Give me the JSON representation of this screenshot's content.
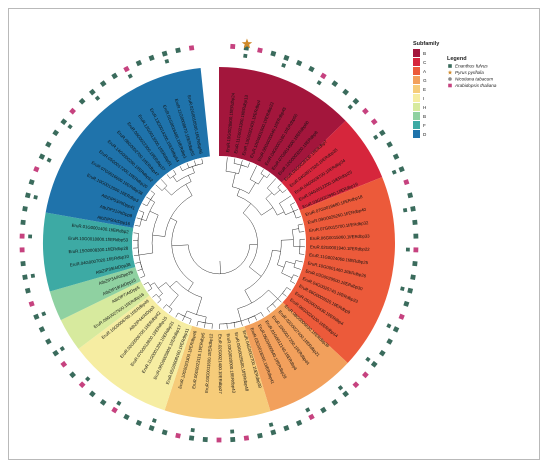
{
  "subfamily_legend": {
    "title": "Subfamily",
    "items": [
      {
        "label": "B",
        "color": "#a3163c"
      },
      {
        "label": "C",
        "color": "#d6263c"
      },
      {
        "label": "A",
        "color": "#ec5a3a"
      },
      {
        "label": "G",
        "color": "#f2a05c"
      },
      {
        "label": "E",
        "color": "#f6cc7a"
      },
      {
        "label": "I",
        "color": "#f6eda2"
      },
      {
        "label": "H",
        "color": "#d7ea9e"
      },
      {
        "label": "B",
        "color": "#8fd1a1"
      },
      {
        "label": "F",
        "color": "#3daaa4"
      },
      {
        "label": "D",
        "color": "#1f73ab"
      }
    ]
  },
  "species_legend": {
    "title": "Legend",
    "items": [
      {
        "label": "Enanthus fulvus",
        "color": "#3a6b5c",
        "shape": "square"
      },
      {
        "label": "Pyrus pyrifolia",
        "color": "#d08a2a",
        "shape": "star"
      },
      {
        "label": "Nicotiana tabacum",
        "color": "#8a8a8a",
        "shape": "circle"
      },
      {
        "label": "Arabidopsis thaliana",
        "color": "#c6427f",
        "shape": "square"
      }
    ]
  },
  "sectors": [
    {
      "subfamily": "B",
      "color": "#a3163c",
      "start": 0,
      "end": 46
    },
    {
      "subfamily": "C",
      "color": "#d6263c",
      "start": 46,
      "end": 68
    },
    {
      "subfamily": "A",
      "color": "#ec5a3a",
      "start": 68,
      "end": 133
    },
    {
      "subfamily": "G",
      "color": "#f2a05c",
      "start": 133,
      "end": 163
    },
    {
      "subfamily": "E",
      "color": "#f6cc7a",
      "start": 163,
      "end": 198
    },
    {
      "subfamily": "I",
      "color": "#f6eda2",
      "start": 198,
      "end": 233
    },
    {
      "subfamily": "H",
      "color": "#d7ea9e",
      "start": 233,
      "end": 244
    },
    {
      "subfamily": "B",
      "color": "#8fd1a1",
      "start": 244,
      "end": 254
    },
    {
      "subfamily": "F",
      "color": "#3daaa4",
      "start": 254,
      "end": 280
    },
    {
      "subfamily": "D",
      "color": "#1f73ab",
      "start": 280,
      "end": 354
    }
  ],
  "markers": {
    "enanthus_color": "#3a6b5c",
    "arabidopsis_color": "#c6427f",
    "star_color": "#d08a2a",
    "gap_start": 354,
    "gap_end": 360,
    "count": 88
  },
  "leaf_labels": [
    "EruR.10G0028800.1f/ERdbp24",
    "EruR.11G0021300.1f/ERdbp13",
    "EruR.13G0022400.1f/ERdbp4",
    "EruR.10G0001000.1f/ERdbp22",
    "EruR.08G0020040.1f/ERdbp45",
    "EruR.04G0001160.1f/ERdbp50",
    "EruR.07G0014500.1f/ERdbp60",
    "EruR.12G0003200.1f/ERdbp8",
    "EruR.04G0028330.1f/ERdbp7",
    "EruR.04G0017920.1f/ERdbp35",
    "EruR.04G0026700.1f/ERdbp34",
    "EruR.04G0012200.1f/ERdbp25",
    "EruR.03G0022990.1f/ERdbp19",
    "EruR.07G0019680.1f/ERdbp18",
    "EruR.09G0026250.1f/ERdbp40",
    "EruR.07G0015700.1f/ERdbp32",
    "EruR.06G0015060.1f/ERdbp33",
    "EruR.02G0001940.1f/ERdbp22",
    "EruR.11G0024060.1f/ERdbp25",
    "EruR.10G0001460.1f/ERdbp26",
    "EruR.03G0029500.1f/ERdbp30",
    "EruR.04G0025740.1f/ERdbp23",
    "EruR.06G0003520.1f/ERdbp9",
    "EruR.05G0010430.1f/ERdbp4",
    "EruR.06G0024100.1f/ERdbp14",
    "EruR.08G0006630.1f/ERdbp36",
    "EruR.02G0027400.1f/ERdbp21",
    "EruR.10G0017250.1f/ERdbp44",
    "EruR.01G0012140.1f/ERdbp6",
    "EruR.05G0000540.1f/ERdbp29",
    "EruR.03G0018200.1f/ERdbp41",
    "EruR.04G0002700.1f/ERdbp39",
    "EruR.09G0025500.1f/ERdbp48",
    "EruR.03G0020000.1f/ERdbp43",
    "EruR.02G0021400.1f/ERdbp27",
    "EruR.03G0011500.1f/ERdbp12",
    "EruR.06G0023110.1f/ERdbp5",
    "EruR.10G0023300.1f/ERdbp46",
    "EruR.05G0008100.1f/ERdbp11",
    "EruR.06G0005800.1f/ERdbp17",
    "EruR.11G0001200.1f/ERdbp31",
    "EruR.07G0012800.1f/ERdbp15",
    "EruR.02G0006700.1f/ERdbp42",
    "AtbZIP44/AtDpp3",
    "EruR.10G0006700.1f/ERdbp49",
    "EruR.09G0027500.1f/ERdbp16",
    "AtbZIP7/AtDpp5",
    "AtbZIP19/AtDpp15",
    "AtbZIP34/AtDpp29",
    "AtbZIP39/AtDpp38",
    "EruR.04G0007020.1f/ERdbp10",
    "EruR.15G0008300.1f/ERdbp28",
    "EruR.10G0018800.1f/ERdbp53",
    "EruR.01G0001400.1f/ERdbp2",
    "AtbZIP9/AtDpp16",
    "AtbZIP21/AtDpp8",
    "AtbZIP53/AtDpp41",
    "EruR.10G0012500.1f/ERdbp3",
    "EruR.07G0016600.1f/ERdbp38",
    "EruR.05G0017200.1f/ERdbp20",
    "EruR.14G0000290.1f/ERdbp52",
    "EruR.08G0002700.1f/ERdbp47",
    "EruR.09G0022300.1f/ERdbp37",
    "EruR.12G0013000.1f/ERdbp51",
    "EruR.13G0014200.1f/ERdbp54",
    "EruR.01G0016400.1f/ERdbp1",
    "EruR.11G0008870.1f/ERdbp55",
    "EruR.02G0010500.1f/ERdbp56"
  ]
}
